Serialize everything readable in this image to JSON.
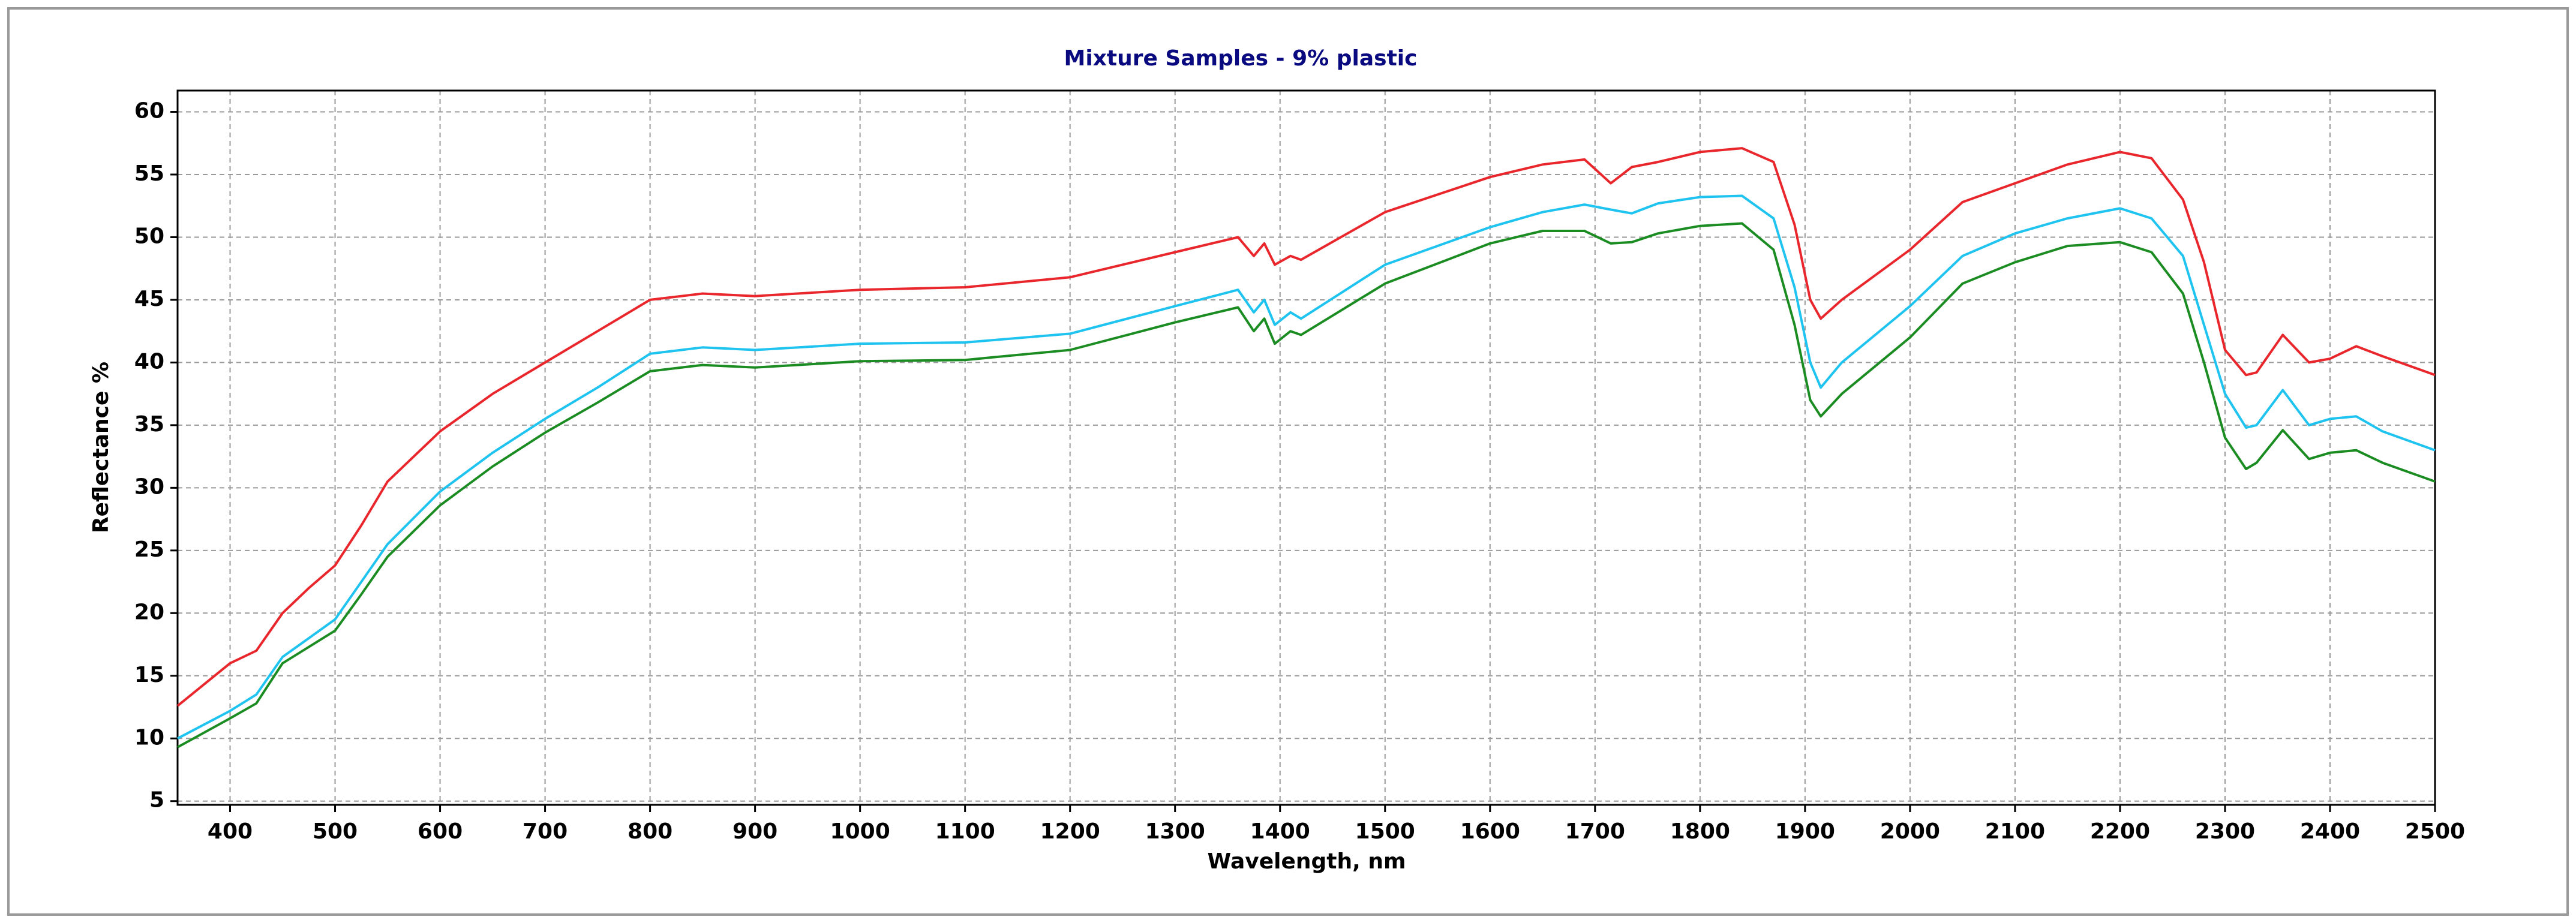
{
  "chart_data": {
    "type": "line",
    "title": "Mixture Samples - 9% plastic",
    "x_label": "Wavelength, nm",
    "y_label": "Reflectance %",
    "x": [
      350,
      400,
      425,
      450,
      475,
      500,
      525,
      550,
      600,
      650,
      700,
      750,
      800,
      850,
      900,
      1000,
      1100,
      1200,
      1300,
      1360,
      1375,
      1385,
      1395,
      1410,
      1420,
      1500,
      1600,
      1650,
      1690,
      1715,
      1735,
      1760,
      1800,
      1840,
      1870,
      1890,
      1905,
      1915,
      1935,
      2000,
      2050,
      2100,
      2150,
      2200,
      2230,
      2260,
      2280,
      2300,
      2320,
      2330,
      2355,
      2380,
      2400,
      2425,
      2450,
      2500
    ],
    "series": [
      {
        "color": "#e8262b",
        "values": [
          12.6,
          16,
          17,
          20,
          22,
          23.8,
          27,
          30.5,
          34.5,
          37.5,
          40,
          42.5,
          45,
          45.5,
          45.3,
          45.8,
          46,
          46.8,
          48.8,
          50,
          48.5,
          49.5,
          47.8,
          48.5,
          48.2,
          52,
          54.8,
          55.8,
          56.2,
          54.3,
          55.6,
          56,
          56.8,
          57.1,
          56,
          51,
          45,
          43.5,
          45,
          49,
          52.8,
          54.3,
          55.8,
          56.8,
          56.3,
          53,
          48,
          41,
          39,
          39.2,
          42.2,
          40,
          40.3,
          41.3,
          40.5,
          39
        ]
      },
      {
        "color": "#1ec3ef",
        "values": [
          10,
          12.2,
          13.5,
          16.5,
          18,
          19.5,
          22.5,
          25.5,
          29.7,
          32.8,
          35.5,
          38,
          40.7,
          41.2,
          41,
          41.5,
          41.6,
          42.3,
          44.5,
          45.8,
          44,
          45,
          43,
          44,
          43.5,
          47.8,
          50.8,
          52,
          52.6,
          52.2,
          51.9,
          52.7,
          53.2,
          53.3,
          51.5,
          46,
          40,
          38,
          40,
          44.5,
          48.5,
          50.3,
          51.5,
          52.3,
          51.5,
          48.5,
          43,
          37.5,
          34.8,
          35,
          37.8,
          35,
          35.5,
          35.7,
          34.5,
          33
        ]
      },
      {
        "color": "#1b8c22",
        "values": [
          9.3,
          11.6,
          12.8,
          16,
          17.3,
          18.6,
          21.5,
          24.5,
          28.6,
          31.7,
          34.4,
          36.8,
          39.3,
          39.8,
          39.6,
          40.1,
          40.2,
          41,
          43.2,
          44.4,
          42.5,
          43.5,
          41.5,
          42.5,
          42.2,
          46.3,
          49.5,
          50.5,
          50.5,
          49.5,
          49.6,
          50.3,
          50.9,
          51.1,
          49,
          43,
          37,
          35.7,
          37.5,
          42,
          46.3,
          48,
          49.3,
          49.6,
          48.8,
          45.5,
          40,
          34,
          31.5,
          32,
          34.6,
          32.3,
          32.8,
          33,
          32,
          30.5
        ]
      }
    ],
    "xlim": [
      350,
      2500
    ],
    "xticks": [
      400,
      500,
      600,
      700,
      800,
      900,
      1000,
      1100,
      1200,
      1300,
      1400,
      1500,
      1600,
      1700,
      1800,
      1900,
      2000,
      2100,
      2200,
      2300,
      2400,
      2500
    ],
    "ylim": [
      4.7,
      61.7
    ],
    "yticks": [
      5,
      10,
      15,
      20,
      25,
      30,
      35,
      40,
      45,
      50,
      55,
      60
    ],
    "grid": true
  }
}
